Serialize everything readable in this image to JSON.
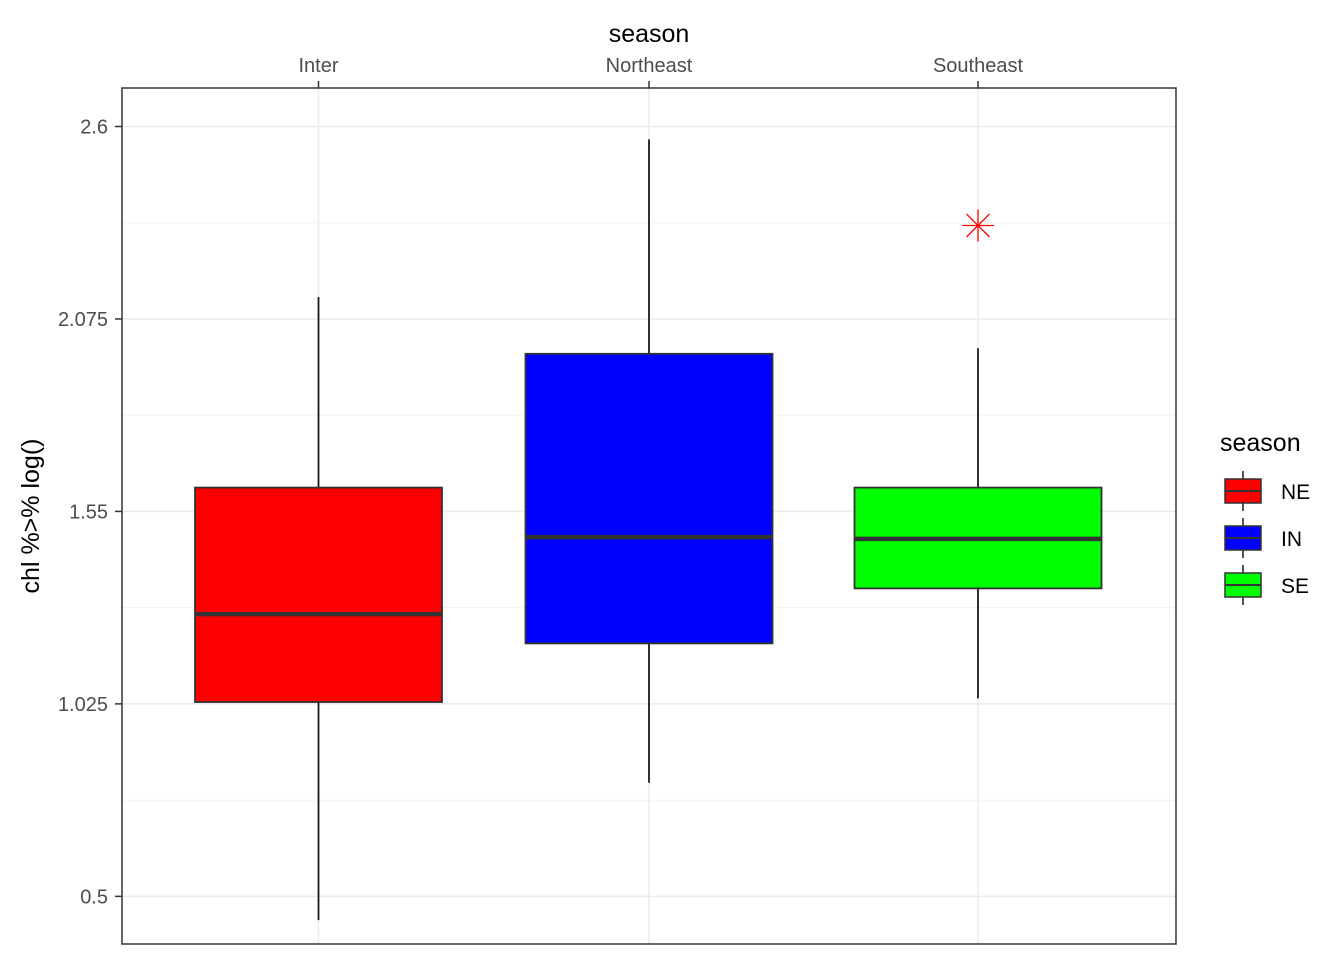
{
  "chart_data": {
    "type": "boxplot",
    "title": "",
    "xlabel": "season",
    "ylabel": "chl %>% log()",
    "x_axis_position": "top",
    "categories": [
      "Inter",
      "Northeast",
      "Southeast"
    ],
    "ylim": [
      0.37,
      2.705
    ],
    "yticks": [
      0.5,
      1.025,
      1.55,
      2.075,
      2.6
    ],
    "ytick_labels": [
      "0.5",
      "1.025",
      "1.55",
      "2.075",
      "2.6"
    ],
    "grid": true,
    "legend": {
      "title": "season",
      "placement": "right",
      "entries": [
        {
          "label": "NE",
          "color": "#ff0000"
        },
        {
          "label": "IN",
          "color": "#0000ff"
        },
        {
          "label": "SE",
          "color": "#00ff00"
        }
      ]
    },
    "boxes": [
      {
        "category": "Inter",
        "fill": "#ff0000",
        "whisker_low": 0.435,
        "q1": 1.03,
        "median": 1.27,
        "q3": 1.615,
        "whisker_high": 2.135,
        "outliers": []
      },
      {
        "category": "Northeast",
        "fill": "#0000ff",
        "whisker_low": 0.81,
        "q1": 1.19,
        "median": 1.48,
        "q3": 1.98,
        "whisker_high": 2.565,
        "outliers": []
      },
      {
        "category": "Southeast",
        "fill": "#00ff00",
        "whisker_low": 1.04,
        "q1": 1.34,
        "median": 1.475,
        "q3": 1.615,
        "whisker_high": 1.995,
        "outliers": [
          {
            "value": 2.33,
            "color": "#ff0000",
            "shape": "asterisk"
          }
        ]
      }
    ]
  }
}
